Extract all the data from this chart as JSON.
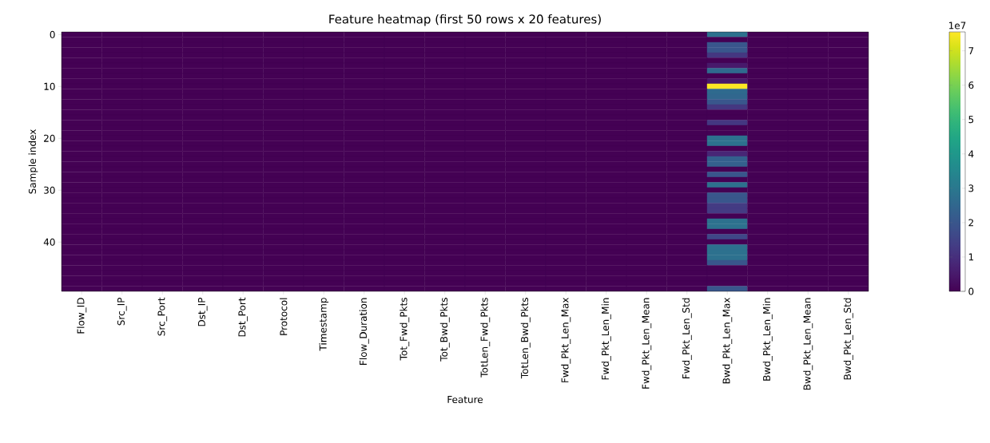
{
  "chart_data": {
    "type": "heatmap",
    "title": "Feature heatmap (first 50 rows x 20 features)",
    "xlabel": "Feature",
    "ylabel": "Sample index",
    "clabel": "1e7",
    "categories": [
      "Flow_ID",
      "Src_IP",
      "Src_Port",
      "Dst_IP",
      "Dst_Port",
      "Protocol",
      "Timestamp",
      "Flow_Duration",
      "Tot_Fwd_Pkts",
      "Tot_Bwd_Pkts",
      "TotLen_Fwd_Pkts",
      "TotLen_Bwd_Pkts",
      "Fwd_Pkt_Len_Max",
      "Fwd_Pkt_Len_Min",
      "Fwd_Pkt_Len_Mean",
      "Fwd_Pkt_Len_Std",
      "Bwd_Pkt_Len_Max",
      "Bwd_Pkt_Len_Min",
      "Bwd_Pkt_Len_Mean",
      "Bwd_Pkt_Len_Std"
    ],
    "y_categories": [
      "0",
      null,
      null,
      null,
      null,
      null,
      null,
      null,
      null,
      null,
      "10",
      null,
      null,
      null,
      null,
      null,
      null,
      null,
      null,
      null,
      "20",
      null,
      null,
      null,
      null,
      null,
      null,
      null,
      null,
      null,
      "30",
      null,
      null,
      null,
      null,
      null,
      null,
      null,
      null,
      null,
      "40",
      null,
      null,
      null,
      null,
      null,
      null,
      null,
      null,
      null
    ],
    "cells": [
      [
        0,
        0,
        0,
        0,
        0,
        0,
        0,
        0,
        0,
        0,
        0,
        0,
        0,
        0,
        0,
        0,
        2.8,
        0,
        0,
        0
      ],
      [
        0,
        0,
        0,
        0,
        0,
        0,
        0,
        0,
        0,
        0,
        0,
        0,
        0,
        0,
        0,
        0,
        0,
        0,
        0,
        0
      ],
      [
        0,
        0,
        0,
        0,
        0,
        0,
        0,
        0,
        0,
        0,
        0,
        0,
        0,
        0,
        0,
        0,
        2.0,
        0,
        0,
        0
      ],
      [
        0,
        0,
        0,
        0,
        0,
        0,
        0,
        0,
        0,
        0,
        0,
        0,
        0,
        0,
        0,
        0,
        2.0,
        0,
        0,
        0
      ],
      [
        0,
        0,
        0,
        0,
        0,
        0,
        0,
        0,
        0,
        0,
        0,
        0,
        0,
        0,
        0,
        0,
        1.2,
        0,
        0,
        0
      ],
      [
        0,
        0,
        0,
        0,
        0,
        0,
        0,
        0,
        0,
        0,
        0,
        0,
        0,
        0,
        0,
        0,
        0,
        0,
        0,
        0
      ],
      [
        0,
        0,
        0,
        0,
        0,
        0,
        0,
        0,
        0,
        0,
        0,
        0,
        0,
        0,
        0,
        0,
        0.5,
        0,
        0,
        0
      ],
      [
        0,
        0,
        0,
        0,
        0,
        0,
        0,
        0,
        0,
        0,
        0,
        0,
        0,
        0,
        0,
        0,
        2.6,
        0,
        0,
        0
      ],
      [
        0,
        0,
        0,
        0,
        0,
        0,
        0,
        0,
        0,
        0,
        0,
        0,
        0,
        0,
        0,
        0,
        0,
        0,
        0,
        0
      ],
      [
        0,
        0,
        0,
        0,
        0,
        0,
        0,
        0,
        0,
        0,
        0,
        0,
        0,
        0,
        0,
        0,
        0.5,
        0,
        0,
        0
      ],
      [
        0,
        0,
        0,
        0,
        0,
        0,
        0,
        0,
        0,
        0,
        0,
        0,
        0,
        0,
        0,
        0,
        7.55,
        0,
        0,
        0
      ],
      [
        0,
        0,
        0,
        0,
        0,
        0,
        0,
        0,
        0,
        0,
        0,
        0,
        0,
        0,
        0,
        0,
        2.6,
        0,
        0,
        0
      ],
      [
        0,
        0,
        0,
        0,
        0,
        0,
        0,
        0,
        0,
        0,
        0,
        0,
        0,
        0,
        0,
        0,
        2.5,
        0,
        0,
        0
      ],
      [
        0,
        0,
        0,
        0,
        0,
        0,
        0,
        0,
        0,
        0,
        0,
        0,
        0,
        0,
        0,
        0,
        2.0,
        0,
        0,
        0
      ],
      [
        0,
        0,
        0,
        0,
        0,
        0,
        0,
        0,
        0,
        0,
        0,
        0,
        0,
        0,
        0,
        0,
        1.2,
        0,
        0,
        0
      ],
      [
        0,
        0,
        0,
        0,
        0,
        0,
        0,
        0,
        0,
        0,
        0,
        0,
        0,
        0,
        0,
        0,
        0,
        0,
        0,
        0
      ],
      [
        0,
        0,
        0,
        0,
        0,
        0,
        0,
        0,
        0,
        0,
        0,
        0,
        0,
        0,
        0,
        0,
        0,
        0,
        0,
        0
      ],
      [
        0,
        0,
        0,
        0,
        0,
        0,
        0,
        0,
        0,
        0,
        0,
        0,
        0,
        0,
        0,
        0,
        1.2,
        0,
        0,
        0
      ],
      [
        0,
        0,
        0,
        0,
        0,
        0,
        0,
        0,
        0,
        0,
        0,
        0,
        0,
        0,
        0,
        0,
        0,
        0,
        0,
        0
      ],
      [
        0,
        0,
        0,
        0,
        0,
        0,
        0,
        0,
        0,
        0,
        0,
        0,
        0,
        0,
        0,
        0,
        0,
        0,
        0,
        0
      ],
      [
        0,
        0,
        0,
        0,
        0,
        0,
        0,
        0,
        0,
        0,
        0,
        0,
        0,
        0,
        0,
        0,
        2.8,
        0,
        0,
        0
      ],
      [
        0,
        0,
        0,
        0,
        0,
        0,
        0,
        0,
        0,
        0,
        0,
        0,
        0,
        0,
        0,
        0,
        2.8,
        0,
        0,
        0
      ],
      [
        0,
        0,
        0,
        0,
        0,
        0,
        0,
        0,
        0,
        0,
        0,
        0,
        0,
        0,
        0,
        0,
        0,
        0,
        0,
        0
      ],
      [
        0,
        0,
        0,
        0,
        0,
        0,
        0,
        0,
        0,
        0,
        0,
        0,
        0,
        0,
        0,
        0,
        0.8,
        0,
        0,
        0
      ],
      [
        0,
        0,
        0,
        0,
        0,
        0,
        0,
        0,
        0,
        0,
        0,
        0,
        0,
        0,
        0,
        0,
        2.3,
        0,
        0,
        0
      ],
      [
        0,
        0,
        0,
        0,
        0,
        0,
        0,
        0,
        0,
        0,
        0,
        0,
        0,
        0,
        0,
        0,
        2.3,
        0,
        0,
        0
      ],
      [
        0,
        0,
        0,
        0,
        0,
        0,
        0,
        0,
        0,
        0,
        0,
        0,
        0,
        0,
        0,
        0,
        0,
        0,
        0,
        0
      ],
      [
        0,
        0,
        0,
        0,
        0,
        0,
        0,
        0,
        0,
        0,
        0,
        0,
        0,
        0,
        0,
        0,
        2.0,
        0,
        0,
        0
      ],
      [
        0,
        0,
        0,
        0,
        0,
        0,
        0,
        0,
        0,
        0,
        0,
        0,
        0,
        0,
        0,
        0,
        0,
        0,
        0,
        0
      ],
      [
        0,
        0,
        0,
        0,
        0,
        0,
        0,
        0,
        0,
        0,
        0,
        0,
        0,
        0,
        0,
        0,
        2.8,
        0,
        0,
        0
      ],
      [
        0,
        0,
        0,
        0,
        0,
        0,
        0,
        0,
        0,
        0,
        0,
        0,
        0,
        0,
        0,
        0,
        0,
        0,
        0,
        0
      ],
      [
        0,
        0,
        0,
        0,
        0,
        0,
        0,
        0,
        0,
        0,
        0,
        0,
        0,
        0,
        0,
        0,
        2.0,
        0,
        0,
        0
      ],
      [
        0,
        0,
        0,
        0,
        0,
        0,
        0,
        0,
        0,
        0,
        0,
        0,
        0,
        0,
        0,
        0,
        2.0,
        0,
        0,
        0
      ],
      [
        0,
        0,
        0,
        0,
        0,
        0,
        0,
        0,
        0,
        0,
        0,
        0,
        0,
        0,
        0,
        0,
        1.3,
        0,
        0,
        0
      ],
      [
        0,
        0,
        0,
        0,
        0,
        0,
        0,
        0,
        0,
        0,
        0,
        0,
        0,
        0,
        0,
        0,
        1.3,
        0,
        0,
        0
      ],
      [
        0,
        0,
        0,
        0,
        0,
        0,
        0,
        0,
        0,
        0,
        0,
        0,
        0,
        0,
        0,
        0,
        0,
        0,
        0,
        0
      ],
      [
        0,
        0,
        0,
        0,
        0,
        0,
        0,
        0,
        0,
        0,
        0,
        0,
        0,
        0,
        0,
        0,
        2.8,
        0,
        0,
        0
      ],
      [
        0,
        0,
        0,
        0,
        0,
        0,
        0,
        0,
        0,
        0,
        0,
        0,
        0,
        0,
        0,
        0,
        2.8,
        0,
        0,
        0
      ],
      [
        0,
        0,
        0,
        0,
        0,
        0,
        0,
        0,
        0,
        0,
        0,
        0,
        0,
        0,
        0,
        0,
        0,
        0,
        0,
        0
      ],
      [
        0,
        0,
        0,
        0,
        0,
        0,
        0,
        0,
        0,
        0,
        0,
        0,
        0,
        0,
        0,
        0,
        1.6,
        0,
        0,
        0
      ],
      [
        0,
        0,
        0,
        0,
        0,
        0,
        0,
        0,
        0,
        0,
        0,
        0,
        0,
        0,
        0,
        0,
        0,
        0,
        0,
        0
      ],
      [
        0,
        0,
        0,
        0,
        0,
        0,
        0,
        0,
        0,
        0,
        0,
        0,
        0,
        0,
        0,
        0,
        2.8,
        0,
        0,
        0
      ],
      [
        0,
        0,
        0,
        0,
        0,
        0,
        0,
        0,
        0,
        0,
        0,
        0,
        0,
        0,
        0,
        0,
        2.8,
        0,
        0,
        0
      ],
      [
        0,
        0,
        0,
        0,
        0,
        0,
        0,
        0,
        0,
        0,
        0,
        0,
        0,
        0,
        0,
        0,
        2.8,
        0,
        0,
        0
      ],
      [
        0,
        0,
        0,
        0,
        0,
        0,
        0,
        0,
        0,
        0,
        0,
        0,
        0,
        0,
        0,
        0,
        2.0,
        0,
        0,
        0
      ],
      [
        0,
        0,
        0,
        0,
        0,
        0,
        0,
        0,
        0,
        0,
        0,
        0,
        0,
        0,
        0,
        0,
        0,
        0,
        0,
        0
      ],
      [
        0,
        0,
        0,
        0,
        0,
        0,
        0,
        0,
        0,
        0,
        0,
        0,
        0,
        0,
        0,
        0,
        0,
        0,
        0,
        0
      ],
      [
        0,
        0,
        0,
        0,
        0,
        0,
        0,
        0,
        0,
        0,
        0,
        0,
        0,
        0,
        0,
        0,
        0,
        0,
        0,
        0
      ],
      [
        0,
        0,
        0,
        0,
        0,
        0,
        0,
        0,
        0,
        0,
        0,
        0,
        0,
        0,
        0,
        0,
        0,
        0,
        0,
        0
      ],
      [
        0,
        0,
        0,
        0,
        0,
        0,
        0,
        0,
        0,
        0,
        0,
        0,
        0,
        0,
        0,
        0,
        2.0,
        0,
        0,
        0
      ]
    ],
    "clim": [
      0,
      7.55
    ],
    "cticks": [
      0,
      1,
      2,
      3,
      4,
      5,
      6,
      7
    ]
  }
}
